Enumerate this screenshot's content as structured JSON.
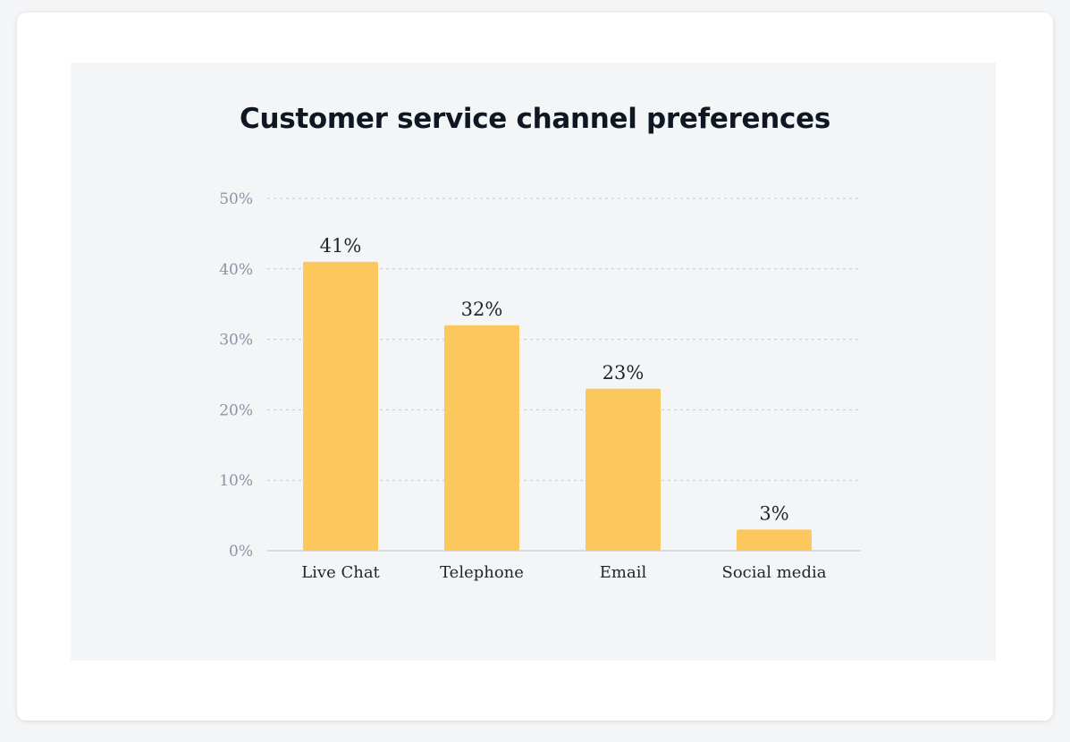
{
  "chart_data": {
    "type": "bar",
    "title": "Customer service channel preferences",
    "categories": [
      "Live Chat",
      "Telephone",
      "Email",
      "Social media"
    ],
    "values": [
      41,
      32,
      23,
      3
    ],
    "data_labels": [
      "41%",
      "32%",
      "23%",
      "3%"
    ],
    "ylim": [
      0,
      50
    ],
    "yticks": [
      0,
      10,
      20,
      30,
      40,
      50
    ],
    "ytick_labels": [
      "0%",
      "10%",
      "20%",
      "30%",
      "40%",
      "50%"
    ],
    "xlabel": "",
    "ylabel": "",
    "grid": true,
    "bar_color": "#fcc85d",
    "grid_color": "#c5cad3",
    "legend": "none"
  }
}
